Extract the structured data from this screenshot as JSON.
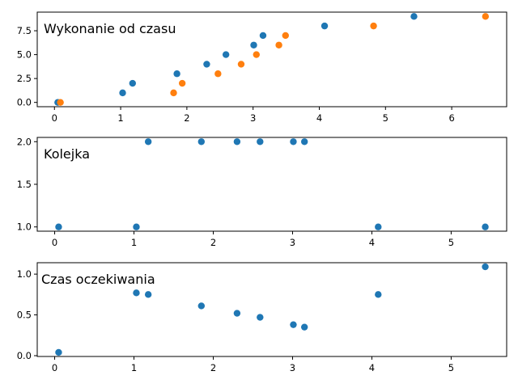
{
  "chart_data": [
    {
      "type": "scatter",
      "title": "Wykonanie od czasu",
      "xlabel": "",
      "ylabel": "",
      "xlim": [
        -0.26,
        6.83
      ],
      "ylim": [
        -0.45,
        9.45
      ],
      "xticks": [
        0,
        1,
        2,
        3,
        4,
        5,
        6
      ],
      "xtick_labels": [
        "0",
        "1",
        "2",
        "3",
        "4",
        "5",
        "6"
      ],
      "yticks": [
        0,
        2.5,
        5,
        7.5
      ],
      "ytick_labels": [
        "0.0",
        "2.5",
        "5.0",
        "7.5"
      ],
      "grid": false,
      "series": [
        {
          "color": "#1f77b4",
          "points": [
            {
              "x": 0.05,
              "y": 0
            },
            {
              "x": 1.03,
              "y": 1
            },
            {
              "x": 1.18,
              "y": 2
            },
            {
              "x": 1.85,
              "y": 3
            },
            {
              "x": 2.3,
              "y": 4
            },
            {
              "x": 2.59,
              "y": 5
            },
            {
              "x": 3.01,
              "y": 6
            },
            {
              "x": 3.15,
              "y": 7
            },
            {
              "x": 4.08,
              "y": 8
            },
            {
              "x": 5.43,
              "y": 9
            }
          ]
        },
        {
          "color": "#ff7f0e",
          "points": [
            {
              "x": 0.09,
              "y": 0
            },
            {
              "x": 1.8,
              "y": 1
            },
            {
              "x": 1.93,
              "y": 2
            },
            {
              "x": 2.47,
              "y": 3
            },
            {
              "x": 2.82,
              "y": 4
            },
            {
              "x": 3.05,
              "y": 5
            },
            {
              "x": 3.39,
              "y": 6
            },
            {
              "x": 3.49,
              "y": 7
            },
            {
              "x": 4.82,
              "y": 8
            },
            {
              "x": 6.51,
              "y": 9
            }
          ]
        }
      ]
    },
    {
      "type": "scatter",
      "title": "Kolejka",
      "xlabel": "",
      "ylabel": "",
      "xlim": [
        -0.22,
        5.7
      ],
      "ylim": [
        0.95,
        2.05
      ],
      "xticks": [
        0,
        1,
        2,
        3,
        4,
        5
      ],
      "xtick_labels": [
        "0",
        "1",
        "2",
        "3",
        "4",
        "5"
      ],
      "yticks": [
        1,
        1.5,
        2
      ],
      "ytick_labels": [
        "1.0",
        "1.5",
        "2.0"
      ],
      "grid": false,
      "series": [
        {
          "color": "#1f77b4",
          "points": [
            {
              "x": 0.05,
              "y": 1
            },
            {
              "x": 1.03,
              "y": 1
            },
            {
              "x": 1.18,
              "y": 2
            },
            {
              "x": 1.85,
              "y": 2
            },
            {
              "x": 2.3,
              "y": 2
            },
            {
              "x": 2.59,
              "y": 2
            },
            {
              "x": 3.01,
              "y": 2
            },
            {
              "x": 3.15,
              "y": 2
            },
            {
              "x": 4.08,
              "y": 1
            },
            {
              "x": 5.43,
              "y": 1
            }
          ]
        }
      ]
    },
    {
      "type": "scatter",
      "title": "Czas oczekiwania",
      "xlabel": "",
      "ylabel": "",
      "xlim": [
        -0.22,
        5.7
      ],
      "ylim": [
        -0.01,
        1.14
      ],
      "xticks": [
        0,
        1,
        2,
        3,
        4,
        5
      ],
      "xtick_labels": [
        "0",
        "1",
        "2",
        "3",
        "4",
        "5"
      ],
      "yticks": [
        0,
        0.5,
        1
      ],
      "ytick_labels": [
        "0.0",
        "0.5",
        "1.0"
      ],
      "grid": false,
      "series": [
        {
          "color": "#1f77b4",
          "points": [
            {
              "x": 0.05,
              "y": 0.04
            },
            {
              "x": 1.03,
              "y": 0.77
            },
            {
              "x": 1.18,
              "y": 0.75
            },
            {
              "x": 1.85,
              "y": 0.61
            },
            {
              "x": 2.3,
              "y": 0.52
            },
            {
              "x": 2.59,
              "y": 0.47
            },
            {
              "x": 3.01,
              "y": 0.38
            },
            {
              "x": 3.15,
              "y": 0.35
            },
            {
              "x": 4.08,
              "y": 0.75
            },
            {
              "x": 5.43,
              "y": 1.09
            }
          ]
        }
      ]
    }
  ]
}
